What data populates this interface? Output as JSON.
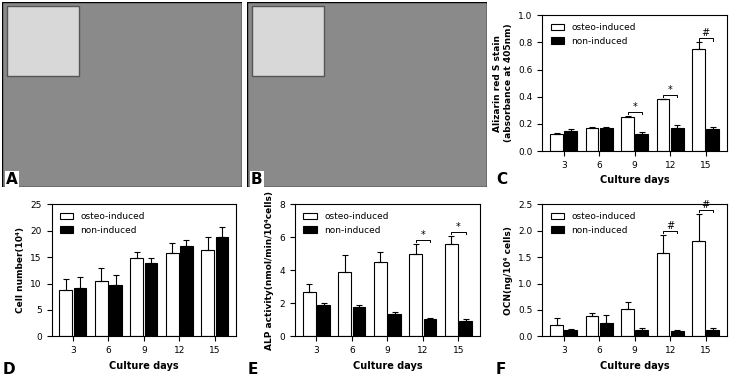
{
  "images": [
    {
      "panel": "A"
    },
    {
      "panel": "B"
    }
  ],
  "chart_data": [
    {
      "type": "bar",
      "panel": "C",
      "xlabel": "Culture days",
      "ylabel": "Alizarin red S stain\n(absorbance at 405nm)",
      "categories": [
        "3",
        "6",
        "9",
        "12",
        "15"
      ],
      "series": [
        {
          "name": "osteo-induced",
          "color": "#ffffff",
          "values": [
            0.13,
            0.17,
            0.25,
            0.38,
            0.75
          ],
          "errors": [
            0.005,
            0.01,
            0.01,
            0.005,
            0.05
          ]
        },
        {
          "name": "non-induced",
          "color": "#000000",
          "values": [
            0.15,
            0.17,
            0.13,
            0.17,
            0.16
          ],
          "errors": [
            0.01,
            0.01,
            0.01,
            0.02,
            0.02
          ]
        }
      ],
      "ylim": [
        0.0,
        1.0
      ],
      "yticks": [
        0.0,
        0.2,
        0.4,
        0.6,
        0.8,
        1.0
      ],
      "legend": "upper left",
      "annotations": [
        {
          "category": "9",
          "text": "*"
        },
        {
          "category": "12",
          "text": "*"
        },
        {
          "category": "15",
          "text": "#"
        }
      ]
    },
    {
      "type": "bar",
      "panel": "D",
      "xlabel": "Culture days",
      "ylabel": "Cell number(10⁴)",
      "categories": [
        "3",
        "6",
        "9",
        "12",
        "15"
      ],
      "series": [
        {
          "name": "osteo-induced",
          "color": "#ffffff",
          "values": [
            8.8,
            10.5,
            14.8,
            15.8,
            16.3
          ],
          "errors": [
            2.0,
            2.5,
            1.2,
            1.8,
            2.5
          ]
        },
        {
          "name": "non-induced",
          "color": "#000000",
          "values": [
            9.2,
            9.8,
            13.8,
            17.0,
            18.7
          ],
          "errors": [
            2.0,
            1.8,
            1.0,
            1.3,
            2.0
          ]
        }
      ],
      "ylim": [
        0,
        25
      ],
      "yticks": [
        0,
        5,
        10,
        15,
        20,
        25
      ],
      "legend": "upper left",
      "annotations": []
    },
    {
      "type": "bar",
      "panel": "E",
      "xlabel": "Culture days",
      "ylabel": "ALP activity(nmol/min/10⁴cells)",
      "categories": [
        "3",
        "6",
        "9",
        "12",
        "15"
      ],
      "series": [
        {
          "name": "osteo-induced",
          "color": "#ffffff",
          "values": [
            2.7,
            3.9,
            4.5,
            5.0,
            5.6
          ],
          "errors": [
            0.5,
            1.0,
            0.6,
            0.6,
            0.5
          ]
        },
        {
          "name": "non-induced",
          "color": "#000000",
          "values": [
            1.9,
            1.75,
            1.35,
            1.05,
            0.95
          ],
          "errors": [
            0.15,
            0.15,
            0.12,
            0.08,
            0.08
          ]
        }
      ],
      "ylim": [
        0,
        8
      ],
      "yticks": [
        0,
        2,
        4,
        6,
        8
      ],
      "legend": "upper left",
      "annotations": [
        {
          "category": "12",
          "text": "*"
        },
        {
          "category": "15",
          "text": "*"
        }
      ]
    },
    {
      "type": "bar",
      "panel": "F",
      "xlabel": "Culture days",
      "ylabel": "OCN(ng/10⁴ cells)",
      "categories": [
        "3",
        "6",
        "9",
        "12",
        "15"
      ],
      "series": [
        {
          "name": "osteo-induced",
          "color": "#ffffff",
          "values": [
            0.22,
            0.38,
            0.52,
            1.57,
            1.8
          ],
          "errors": [
            0.12,
            0.07,
            0.13,
            0.35,
            0.52
          ]
        },
        {
          "name": "non-induced",
          "color": "#000000",
          "values": [
            0.12,
            0.25,
            0.13,
            0.1,
            0.13
          ],
          "errors": [
            0.02,
            0.15,
            0.03,
            0.02,
            0.03
          ]
        }
      ],
      "ylim": [
        0.0,
        2.5
      ],
      "yticks": [
        0.0,
        0.5,
        1.0,
        1.5,
        2.0,
        2.5
      ],
      "legend": "upper left",
      "annotations": [
        {
          "category": "12",
          "text": "#"
        },
        {
          "category": "15",
          "text": "#"
        }
      ]
    }
  ]
}
